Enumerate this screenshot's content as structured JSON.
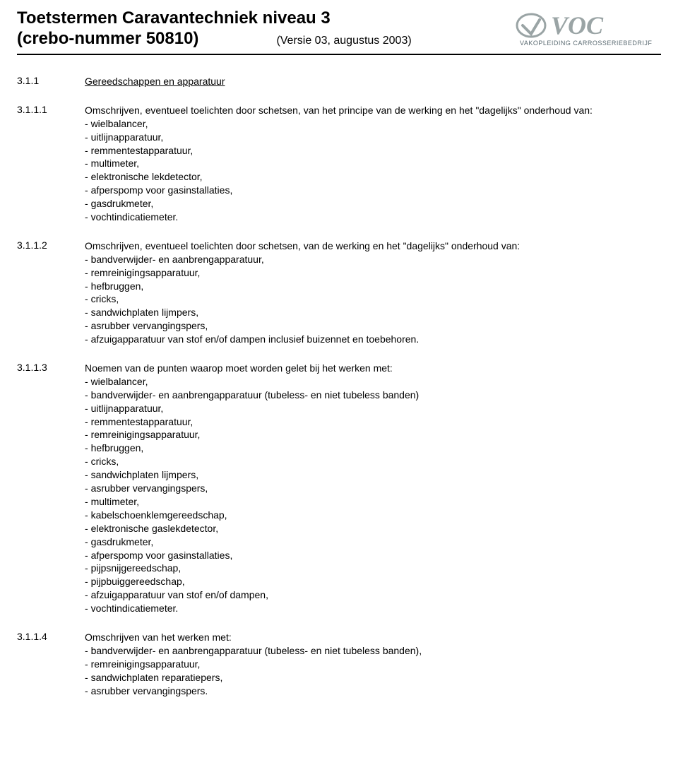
{
  "header": {
    "title": "Toetstermen Caravantechniek niveau 3",
    "subtitle": "(crebo-nummer 50810)",
    "version": "(Versie 03, augustus 2003)",
    "logo": {
      "text_top": "VOC",
      "text_bottom": "VAKOPLEIDING CARROSSERIEBEDRIJF",
      "color_top": "#9aa4a5",
      "color_bottom": "#5b6b72"
    }
  },
  "sections": [
    {
      "num": "3.1.1",
      "heading": "Gereedschappen en apparatuur",
      "intro": null,
      "items": []
    },
    {
      "num": "3.1.1.1",
      "heading": null,
      "intro": "Omschrijven, eventueel toelichten door schetsen, van het principe van de werking en het \"dagelijks\" onderhoud van:",
      "items": [
        "wielbalancer,",
        "uitlijnapparatuur,",
        "remmentestapparatuur,",
        "multimeter,",
        "elektronische lekdetector,",
        "afperspomp voor gasinstallaties,",
        "gasdrukmeter,",
        "vochtindicatiemeter."
      ]
    },
    {
      "num": "3.1.1.2",
      "heading": null,
      "intro": "Omschrijven, eventueel toelichten door schetsen, van de werking en het \"dagelijks\" onderhoud van:",
      "items": [
        "bandverwijder- en aanbrengapparatuur,",
        "remreinigingsapparatuur,",
        "hefbruggen,",
        "cricks,",
        "sandwichplaten lijmpers,",
        "asrubber vervangingspers,",
        "afzuigapparatuur van stof en/of dampen inclusief buizennet en toebehoren."
      ]
    },
    {
      "num": "3.1.1.3",
      "heading": null,
      "intro": "Noemen van de punten waarop moet worden gelet bij het werken met:",
      "items": [
        "wielbalancer,",
        "bandverwijder- en aanbrengapparatuur (tubeless- en niet tubeless banden)",
        "uitlijnapparatuur,",
        "remmentestapparatuur,",
        "remreinigingsapparatuur,",
        "hefbruggen,",
        "cricks,",
        "sandwichplaten lijmpers,",
        "asrubber vervangingspers,",
        "multimeter,",
        "kabelschoenklemgereedschap,",
        "elektronische gaslekdetector,",
        "gasdrukmeter,",
        "afperspomp voor gasinstallaties,",
        "pijpsnijgereedschap,",
        "pijpbuiggereedschap,",
        "afzuigapparatuur van stof en/of dampen,",
        "vochtindicatiemeter."
      ]
    },
    {
      "num": "3.1.1.4",
      "heading": null,
      "intro": "Omschrijven van het werken met:",
      "items": [
        "bandverwijder- en aanbrengapparatuur (tubeless- en niet tubeless banden),",
        "remreinigingsapparatuur,",
        "sandwichplaten reparatiepers,",
        "asrubber vervangingspers."
      ]
    }
  ]
}
